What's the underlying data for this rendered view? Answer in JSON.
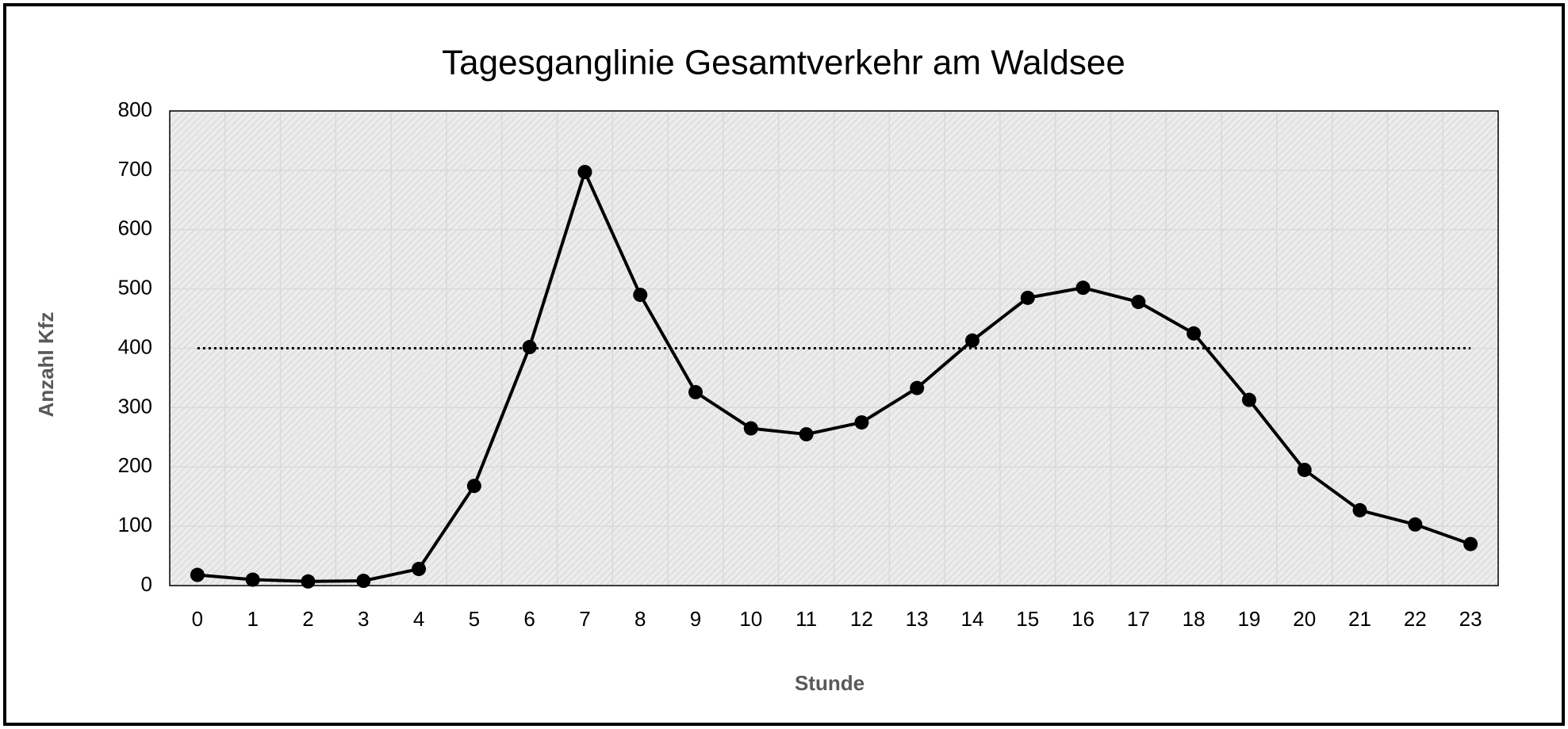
{
  "chart_data": {
    "type": "line",
    "title": "Tagesganglinie Gesamtverkehr am Waldsee",
    "x_label": "Stunde",
    "y_label": "Anzahl Kfz",
    "categories": [
      "0",
      "1",
      "2",
      "3",
      "4",
      "5",
      "6",
      "7",
      "8",
      "9",
      "10",
      "11",
      "12",
      "13",
      "14",
      "15",
      "16",
      "17",
      "18",
      "19",
      "20",
      "21",
      "22",
      "23"
    ],
    "values": [
      18,
      10,
      7,
      8,
      28,
      168,
      402,
      697,
      490,
      326,
      265,
      255,
      275,
      333,
      413,
      485,
      502,
      478,
      425,
      313,
      195,
      127,
      103,
      70
    ],
    "color": "#000000",
    "reference_value": 400,
    "ylim": [
      0,
      800
    ],
    "yticks": [
      0,
      100,
      200,
      300,
      400,
      500,
      600,
      700,
      800
    ],
    "grid": true
  }
}
